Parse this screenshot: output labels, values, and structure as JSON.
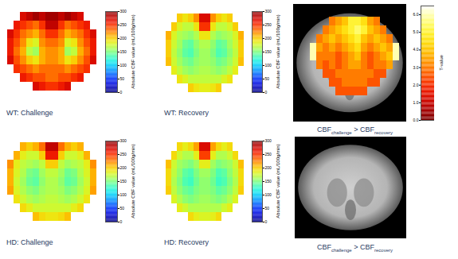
{
  "chart_data": [
    {
      "type": "heatmap",
      "title": "WT: Challenge",
      "tick_labels": false,
      "cells": [
        [
          null,
          null,
          270,
          280,
          290,
          280,
          290,
          290,
          280,
          290,
          280,
          270,
          null,
          null
        ],
        [
          null,
          260,
          250,
          240,
          230,
          250,
          280,
          280,
          250,
          230,
          240,
          250,
          260,
          null
        ],
        [
          270,
          250,
          230,
          220,
          210,
          230,
          250,
          250,
          230,
          210,
          220,
          230,
          250,
          270
        ],
        [
          260,
          240,
          220,
          190,
          180,
          220,
          230,
          230,
          220,
          180,
          190,
          220,
          240,
          260
        ],
        [
          260,
          230,
          210,
          170,
          160,
          210,
          220,
          220,
          210,
          160,
          170,
          210,
          230,
          260
        ],
        [
          270,
          240,
          220,
          200,
          190,
          210,
          220,
          220,
          210,
          190,
          200,
          220,
          240,
          270
        ],
        [
          null,
          250,
          240,
          230,
          220,
          230,
          230,
          230,
          230,
          220,
          230,
          240,
          250,
          null
        ],
        [
          null,
          null,
          260,
          250,
          240,
          240,
          230,
          230,
          240,
          240,
          250,
          260,
          null,
          null
        ],
        [
          null,
          null,
          null,
          null,
          270,
          260,
          250,
          250,
          260,
          270,
          null,
          null,
          null,
          null
        ]
      ],
      "colorbar": {
        "range": [
          0,
          300
        ],
        "ticks": [
          0,
          50,
          100,
          150,
          200,
          250,
          300
        ],
        "label": "Absolute CBF value (mL/100g/min)"
      }
    },
    {
      "type": "heatmap",
      "title": "WT: Recovery",
      "tick_labels": false,
      "cells": [
        [
          null,
          null,
          200,
          190,
          200,
          220,
          270,
          270,
          220,
          200,
          190,
          200,
          null,
          null
        ],
        [
          null,
          200,
          180,
          170,
          170,
          190,
          250,
          250,
          190,
          170,
          170,
          180,
          200,
          null
        ],
        [
          210,
          180,
          165,
          160,
          155,
          165,
          190,
          190,
          165,
          155,
          160,
          165,
          180,
          210
        ],
        [
          200,
          175,
          160,
          145,
          140,
          155,
          165,
          165,
          155,
          140,
          145,
          160,
          175,
          200
        ],
        [
          200,
          170,
          155,
          140,
          135,
          150,
          160,
          160,
          150,
          135,
          140,
          155,
          170,
          200
        ],
        [
          205,
          175,
          160,
          150,
          145,
          155,
          160,
          160,
          155,
          145,
          150,
          160,
          175,
          205
        ],
        [
          null,
          185,
          170,
          160,
          155,
          160,
          165,
          165,
          160,
          155,
          160,
          170,
          185,
          null
        ],
        [
          null,
          null,
          190,
          180,
          170,
          170,
          170,
          170,
          170,
          170,
          180,
          190,
          null,
          null
        ],
        [
          null,
          null,
          null,
          null,
          200,
          190,
          185,
          185,
          190,
          200,
          null,
          null,
          null,
          null
        ]
      ],
      "colorbar": {
        "range": [
          0,
          300
        ],
        "ticks": [
          0,
          50,
          100,
          150,
          200,
          250,
          300
        ],
        "label": "Absolute CBF value (mL/100g/min)"
      }
    },
    {
      "type": "overlay",
      "title": [
        {
          "text": "CBF"
        },
        {
          "text": "challenge",
          "sub": true
        },
        {
          "text": " > CBF"
        },
        {
          "text": "recovery",
          "sub": true
        }
      ],
      "tick_labels": false,
      "cells": [
        [
          null,
          null,
          null,
          3,
          3.5,
          4,
          5,
          5,
          4.5,
          3.5,
          3,
          null,
          null,
          null
        ],
        [
          null,
          null,
          3,
          3.5,
          4,
          4.5,
          5,
          5.5,
          5,
          4,
          3.5,
          3,
          null,
          null
        ],
        [
          null,
          3,
          3.5,
          4,
          3.5,
          4,
          4.5,
          5,
          4,
          3.5,
          4,
          3.5,
          3,
          null
        ],
        [
          6,
          3.5,
          3,
          3.5,
          3,
          3.5,
          4,
          4.5,
          3.5,
          3,
          3.5,
          4,
          3.5,
          6
        ],
        [
          6,
          3,
          3,
          3,
          2.5,
          3,
          3.5,
          4,
          3,
          2.5,
          3,
          3.5,
          4,
          6
        ],
        [
          null,
          3,
          2.5,
          3,
          2.5,
          3,
          3.5,
          3.5,
          3,
          2.5,
          3,
          3,
          3.5,
          null
        ],
        [
          null,
          null,
          2.5,
          2.5,
          3,
          3,
          3,
          3,
          3,
          3,
          2.5,
          2.5,
          null,
          null
        ],
        [
          null,
          null,
          null,
          2.5,
          2.5,
          3,
          3,
          3,
          3,
          2.5,
          2.5,
          null,
          null,
          null
        ],
        [
          null,
          null,
          null,
          null,
          2.5,
          2.5,
          2.5,
          2.5,
          2.5,
          null,
          null,
          null,
          null,
          null
        ]
      ],
      "colorbar": {
        "range": [
          0,
          6.5
        ],
        "ticks": [
          0,
          1,
          2,
          3,
          4,
          5,
          6
        ],
        "label": "T-value"
      }
    },
    {
      "type": "heatmap",
      "title": "HD: Challenge",
      "tick_labels": false,
      "cells": [
        [
          null,
          null,
          210,
          200,
          210,
          230,
          280,
          280,
          230,
          210,
          200,
          210,
          null,
          null
        ],
        [
          null,
          210,
          185,
          175,
          175,
          200,
          260,
          260,
          200,
          175,
          175,
          185,
          210,
          null
        ],
        [
          220,
          185,
          170,
          165,
          160,
          170,
          200,
          200,
          170,
          160,
          165,
          170,
          185,
          220
        ],
        [
          210,
          180,
          165,
          150,
          145,
          160,
          170,
          170,
          160,
          145,
          150,
          165,
          180,
          210
        ],
        [
          210,
          175,
          160,
          145,
          140,
          155,
          165,
          165,
          155,
          140,
          145,
          160,
          175,
          210
        ],
        [
          215,
          180,
          165,
          155,
          150,
          160,
          165,
          165,
          160,
          150,
          155,
          165,
          180,
          215
        ],
        [
          null,
          190,
          175,
          165,
          160,
          165,
          170,
          170,
          165,
          160,
          165,
          175,
          190,
          null
        ],
        [
          null,
          null,
          195,
          185,
          175,
          175,
          175,
          175,
          175,
          175,
          185,
          195,
          null,
          null
        ],
        [
          null,
          null,
          null,
          null,
          205,
          195,
          190,
          190,
          195,
          205,
          null,
          null,
          null,
          null
        ]
      ],
      "colorbar": {
        "range": [
          0,
          300
        ],
        "ticks": [
          0,
          50,
          100,
          150,
          200,
          250,
          300
        ],
        "label": "Absolute CBF value (mL/100g/min)"
      }
    },
    {
      "type": "heatmap",
      "title": "HD: Recovery",
      "tick_labels": false,
      "cells": [
        [
          null,
          null,
          195,
          185,
          195,
          215,
          270,
          270,
          215,
          195,
          185,
          195,
          null,
          null
        ],
        [
          null,
          195,
          175,
          165,
          165,
          185,
          245,
          245,
          185,
          165,
          165,
          175,
          195,
          null
        ],
        [
          205,
          175,
          160,
          155,
          150,
          160,
          185,
          185,
          160,
          150,
          155,
          160,
          175,
          205
        ],
        [
          195,
          170,
          155,
          140,
          135,
          150,
          160,
          160,
          150,
          135,
          140,
          155,
          170,
          195
        ],
        [
          195,
          165,
          150,
          135,
          130,
          145,
          155,
          155,
          145,
          130,
          135,
          150,
          165,
          195
        ],
        [
          200,
          170,
          155,
          145,
          140,
          150,
          155,
          155,
          150,
          140,
          145,
          155,
          170,
          200
        ],
        [
          null,
          180,
          165,
          155,
          150,
          155,
          160,
          160,
          155,
          150,
          155,
          165,
          180,
          null
        ],
        [
          null,
          null,
          185,
          175,
          165,
          165,
          165,
          165,
          165,
          165,
          175,
          185,
          null,
          null
        ],
        [
          null,
          null,
          null,
          null,
          195,
          185,
          180,
          180,
          185,
          195,
          null,
          null,
          null,
          null
        ]
      ],
      "colorbar": {
        "range": [
          0,
          300
        ],
        "ticks": [
          0,
          50,
          100,
          150,
          200,
          250,
          300
        ],
        "label": "Absolute CBF value (mL/100g/min)"
      }
    },
    {
      "type": "overlay",
      "title": [
        {
          "text": "CBF"
        },
        {
          "text": "challenge",
          "sub": true
        },
        {
          "text": " > CBF"
        },
        {
          "text": "recovery",
          "sub": true
        }
      ],
      "tick_labels": false
    }
  ]
}
